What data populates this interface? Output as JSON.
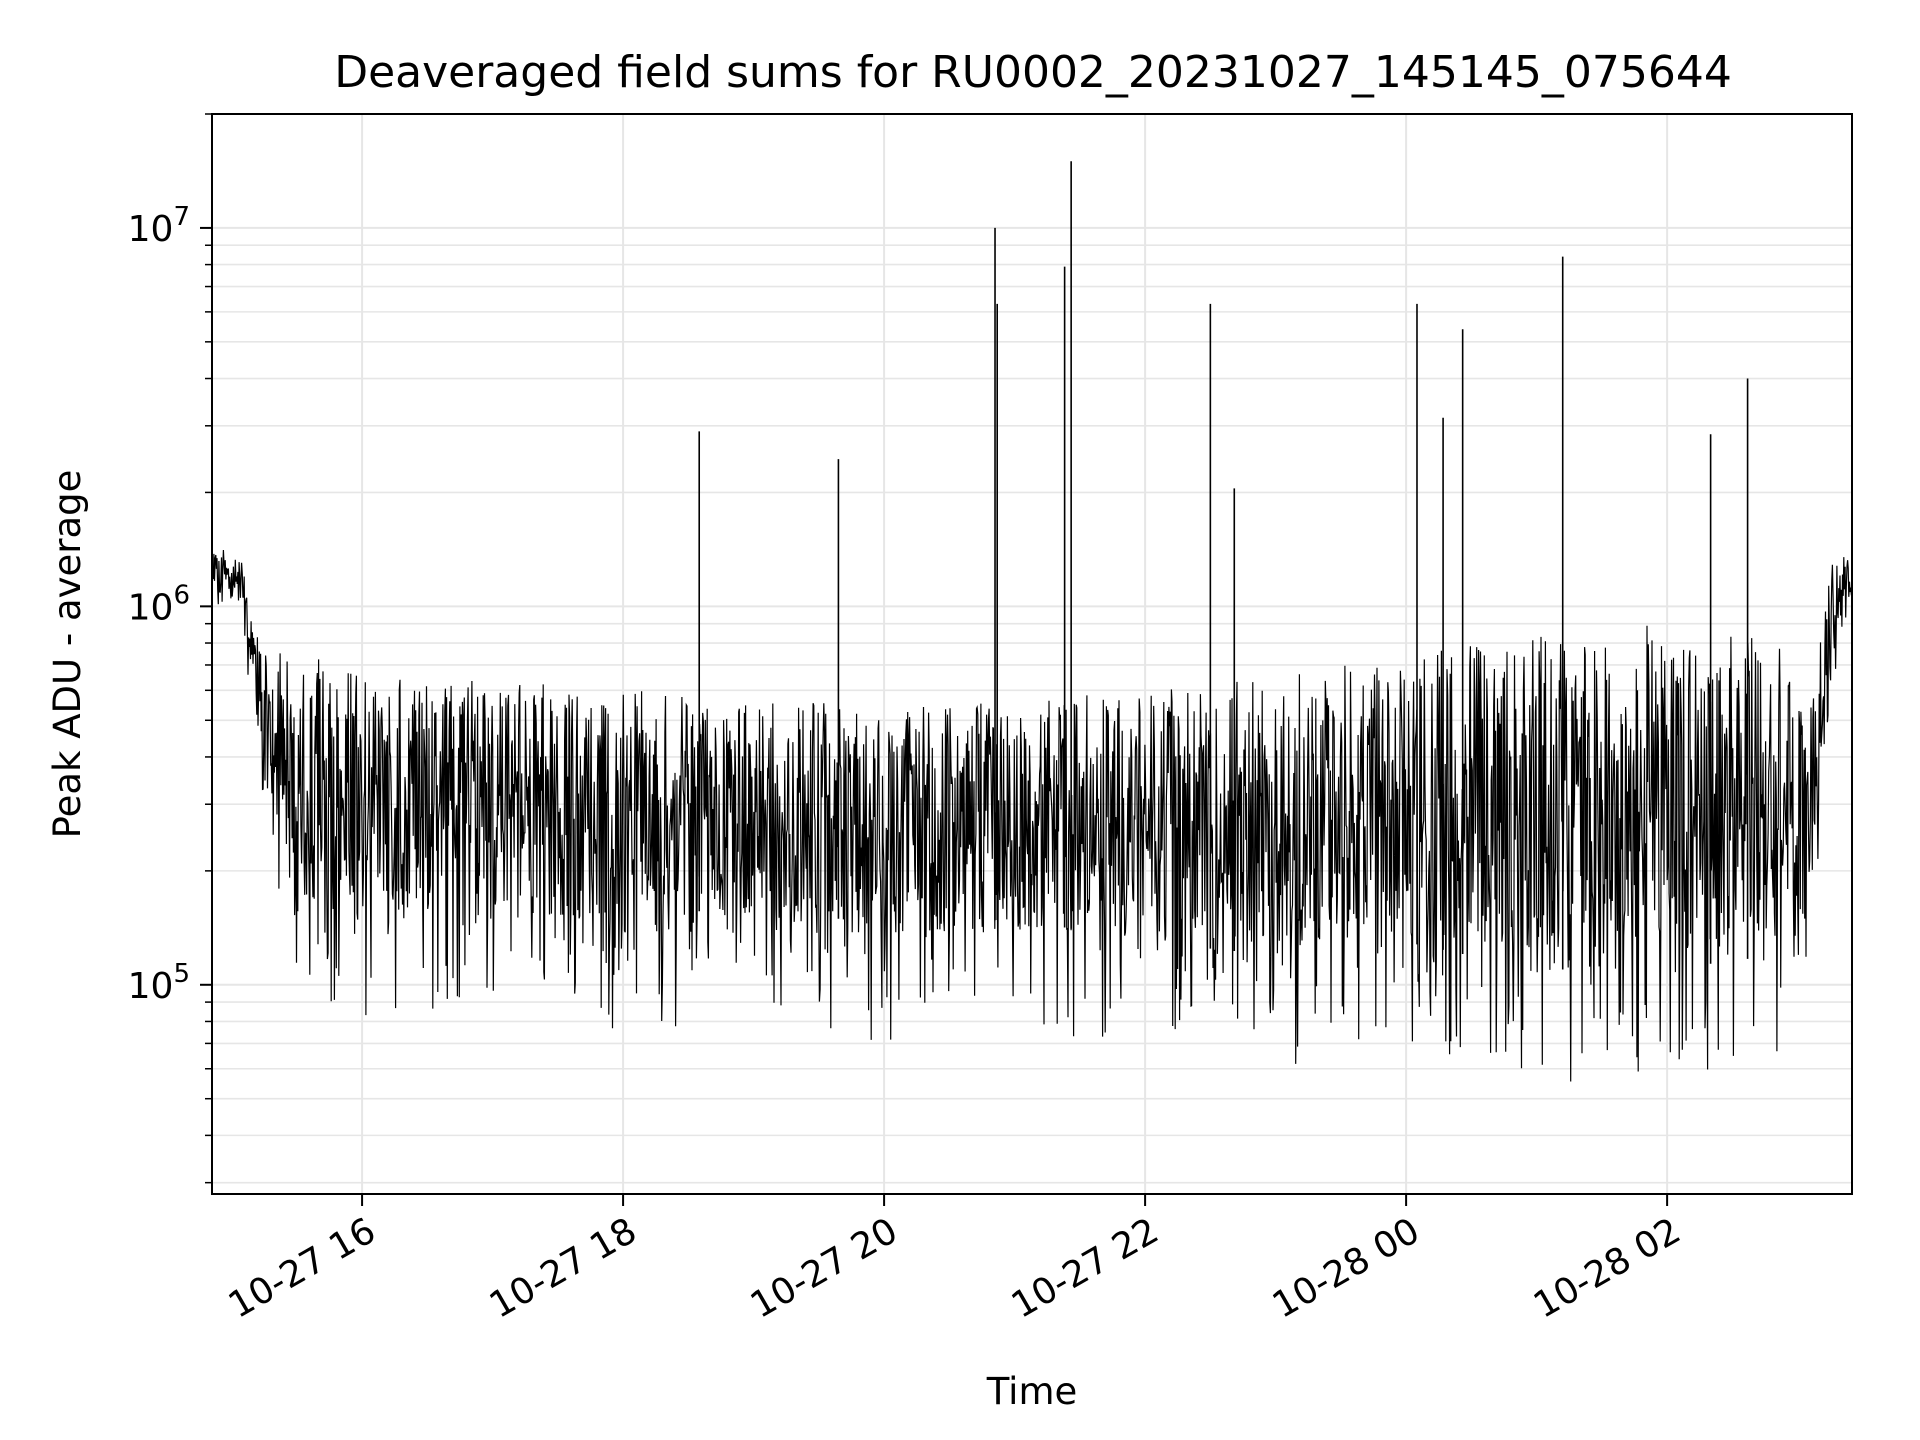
{
  "chart_data": {
    "type": "line",
    "title": "Deaveraged field sums for RU0002_20231027_145145_075644",
    "xlabel": "Time",
    "ylabel": "Peak ADU - average",
    "y_scale": "log",
    "ylim": [
      28000,
      20000000
    ],
    "xlim": [
      "2023-10-27 14:51",
      "2023-10-28 03:25"
    ],
    "grid": true,
    "line_color": "#000000",
    "grid_color": "#e6e6e6",
    "x_ticks": [
      {
        "label": "10-27 16",
        "value": "2023-10-27 16:00"
      },
      {
        "label": "10-27 18",
        "value": "2023-10-27 18:00"
      },
      {
        "label": "10-27 20",
        "value": "2023-10-27 20:00"
      },
      {
        "label": "10-27 22",
        "value": "2023-10-27 22:00"
      },
      {
        "label": "10-28 00",
        "value": "2023-10-28 00:00"
      },
      {
        "label": "10-28 02",
        "value": "2023-10-28 02:00"
      }
    ],
    "y_ticks": [
      {
        "base": "10",
        "exp": "5",
        "value": 100000
      },
      {
        "base": "10",
        "exp": "6",
        "value": 1000000
      },
      {
        "base": "10",
        "exp": "7",
        "value": 10000000
      }
    ],
    "envelope": [
      {
        "t": "2023-10-27 14:51",
        "low": 950000,
        "high": 1500000
      },
      {
        "t": "2023-10-27 15:05",
        "low": 900000,
        "high": 1300000
      },
      {
        "t": "2023-10-27 15:15",
        "low": 250000,
        "high": 800000
      },
      {
        "t": "2023-10-27 15:30",
        "low": 90000,
        "high": 750000
      },
      {
        "t": "2023-10-27 16:00",
        "low": 80000,
        "high": 700000
      },
      {
        "t": "2023-10-27 17:00",
        "low": 90000,
        "high": 650000
      },
      {
        "t": "2023-10-27 18:00",
        "low": 70000,
        "high": 600000
      },
      {
        "t": "2023-10-27 19:00",
        "low": 85000,
        "high": 580000
      },
      {
        "t": "2023-10-27 20:00",
        "low": 70000,
        "high": 550000
      },
      {
        "t": "2023-10-27 21:00",
        "low": 75000,
        "high": 560000
      },
      {
        "t": "2023-10-27 22:00",
        "low": 65000,
        "high": 600000
      },
      {
        "t": "2023-10-27 23:00",
        "low": 60000,
        "high": 650000
      },
      {
        "t": "2023-10-28 00:00",
        "low": 65000,
        "high": 750000
      },
      {
        "t": "2023-10-28 01:00",
        "low": 55000,
        "high": 850000
      },
      {
        "t": "2023-10-28 02:00",
        "low": 55000,
        "high": 900000
      },
      {
        "t": "2023-10-28 02:50",
        "low": 60000,
        "high": 850000
      },
      {
        "t": "2023-10-28 03:05",
        "low": 80000,
        "high": 500000
      },
      {
        "t": "2023-10-28 03:15",
        "low": 600000,
        "high": 1300000
      },
      {
        "t": "2023-10-28 03:25",
        "low": 900000,
        "high": 1400000
      }
    ],
    "spikes": [
      {
        "t": "2023-10-27 18:35",
        "value": 2900000
      },
      {
        "t": "2023-10-27 19:39",
        "value": 2450000
      },
      {
        "t": "2023-10-27 20:51",
        "value": 10000000
      },
      {
        "t": "2023-10-27 20:52",
        "value": 6300000
      },
      {
        "t": "2023-10-27 21:23",
        "value": 7900000
      },
      {
        "t": "2023-10-27 21:26",
        "value": 15000000
      },
      {
        "t": "2023-10-27 22:30",
        "value": 6300000
      },
      {
        "t": "2023-10-27 22:41",
        "value": 2050000
      },
      {
        "t": "2023-10-28 00:05",
        "value": 6300000
      },
      {
        "t": "2023-10-28 00:17",
        "value": 3150000
      },
      {
        "t": "2023-10-28 00:26",
        "value": 5400000
      },
      {
        "t": "2023-10-28 01:12",
        "value": 8400000
      },
      {
        "t": "2023-10-28 02:20",
        "value": 2850000
      },
      {
        "t": "2023-10-28 02:37",
        "value": 4000000
      }
    ]
  }
}
